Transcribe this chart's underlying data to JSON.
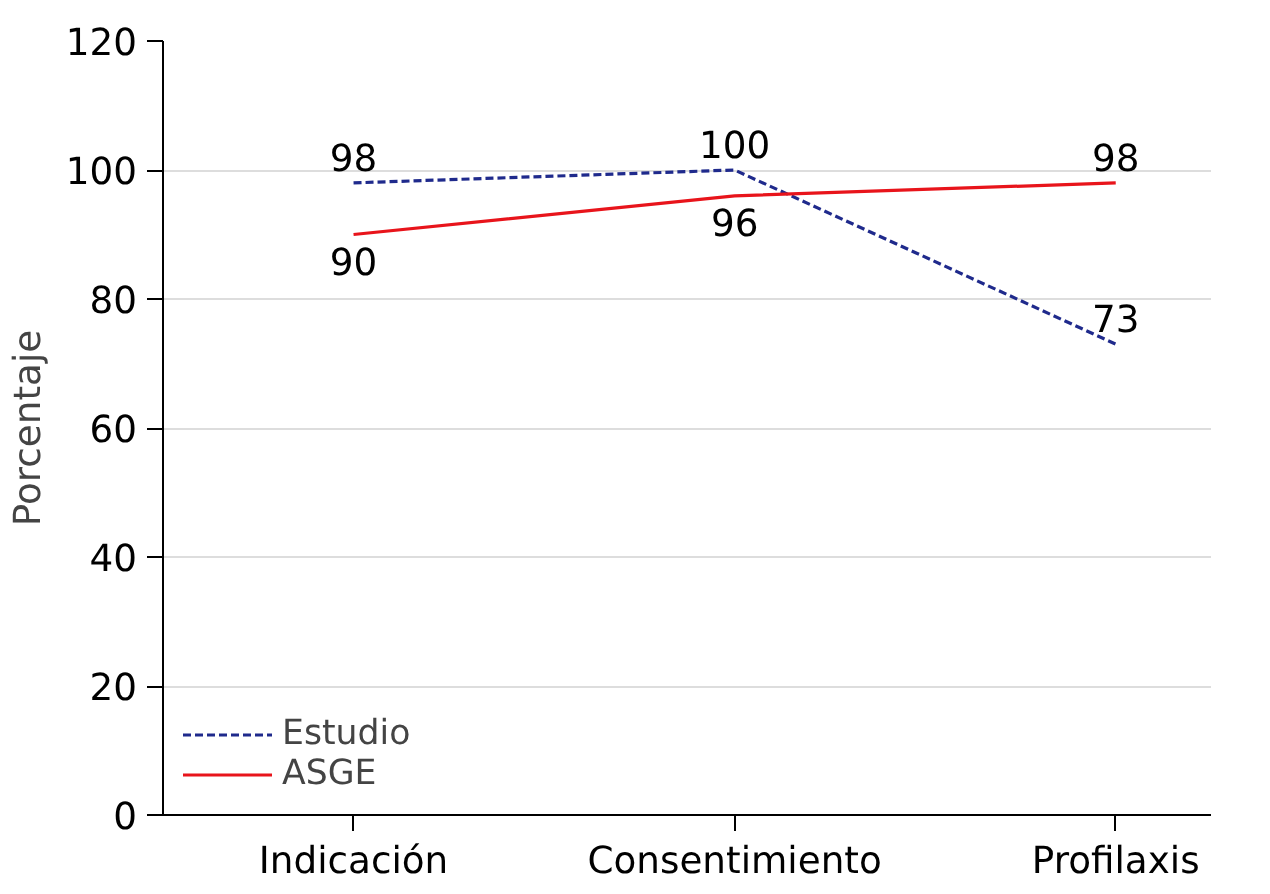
{
  "chart_data": {
    "type": "line",
    "ylabel": "Porcentaje",
    "categories": [
      "Indicación",
      "Consentimiento",
      "Profilaxis"
    ],
    "series": [
      {
        "name": "Estudio",
        "color": "#1f2a8c",
        "values": [
          98,
          100,
          73
        ],
        "line_style": "dashed"
      },
      {
        "name": "ASGE",
        "color": "#e8141b",
        "values": [
          90,
          96,
          98
        ],
        "line_style": "solid"
      }
    ],
    "ylim": [
      0,
      120
    ],
    "yticks": [
      0,
      20,
      40,
      60,
      80,
      100,
      120
    ],
    "grid": "y",
    "legend": "bottom left",
    "data_labels": true,
    "marker": "none"
  }
}
